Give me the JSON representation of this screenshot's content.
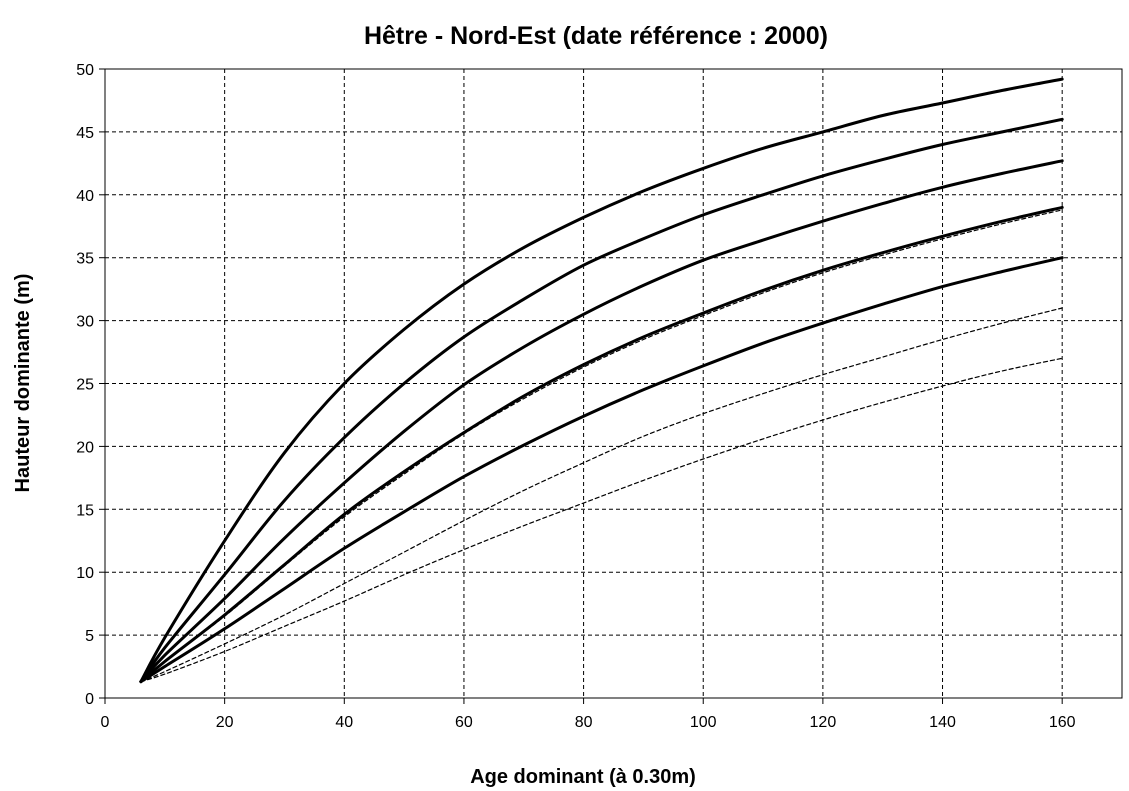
{
  "chart_data": {
    "type": "line",
    "title": "Hêtre - Nord-Est  (date référence : 2000)",
    "xlabel": "Age dominant (à 0.30m)",
    "ylabel": "Hauteur  dominante (m)",
    "xlim": [
      0,
      170
    ],
    "ylim": [
      0,
      50
    ],
    "xticks": [
      0,
      20,
      40,
      60,
      80,
      100,
      120,
      140,
      160
    ],
    "yticks": [
      0,
      5,
      10,
      15,
      20,
      25,
      30,
      35,
      40,
      45,
      50
    ],
    "grid": true,
    "legend": "none",
    "series": [
      {
        "style": "solid",
        "color": "#000000",
        "x": [
          6,
          10,
          20,
          30,
          40,
          50,
          60,
          70,
          80,
          90,
          100,
          110,
          120,
          130,
          140,
          150,
          160
        ],
        "y": [
          1.3,
          4.8,
          12.5,
          19.5,
          25.0,
          29.3,
          32.9,
          35.8,
          38.2,
          40.3,
          42.1,
          43.7,
          45.0,
          46.3,
          47.3,
          48.3,
          49.2
        ]
      },
      {
        "style": "solid",
        "color": "#000000",
        "x": [
          6,
          10,
          20,
          30,
          40,
          50,
          60,
          70,
          80,
          90,
          100,
          110,
          120,
          130,
          140,
          150,
          160
        ],
        "y": [
          1.3,
          4.0,
          9.8,
          15.7,
          20.7,
          25.0,
          28.7,
          31.7,
          34.4,
          36.5,
          38.4,
          40.0,
          41.5,
          42.8,
          44.0,
          45.0,
          46.0
        ]
      },
      {
        "style": "solid",
        "color": "#000000",
        "x": [
          6,
          10,
          20,
          30,
          40,
          50,
          60,
          70,
          80,
          90,
          100,
          110,
          120,
          130,
          140,
          150,
          160
        ],
        "y": [
          1.3,
          3.4,
          7.9,
          12.7,
          17.1,
          21.2,
          24.9,
          27.9,
          30.5,
          32.8,
          34.8,
          36.4,
          37.9,
          39.3,
          40.6,
          41.7,
          42.7
        ]
      },
      {
        "style": "solid",
        "color": "#000000",
        "x": [
          6,
          10,
          20,
          30,
          40,
          50,
          60,
          70,
          80,
          90,
          100,
          110,
          120,
          130,
          140,
          150,
          160
        ],
        "y": [
          1.3,
          2.9,
          6.6,
          10.6,
          14.6,
          18.0,
          21.1,
          24.0,
          26.5,
          28.7,
          30.6,
          32.4,
          34.0,
          35.4,
          36.7,
          37.9,
          39.0
        ]
      },
      {
        "style": "solid",
        "color": "#000000",
        "x": [
          6,
          10,
          20,
          30,
          40,
          50,
          60,
          70,
          80,
          90,
          100,
          110,
          120,
          130,
          140,
          150,
          160
        ],
        "y": [
          1.3,
          2.5,
          5.5,
          8.7,
          11.9,
          14.8,
          17.6,
          20.1,
          22.4,
          24.5,
          26.4,
          28.2,
          29.8,
          31.3,
          32.7,
          33.9,
          35.0
        ]
      },
      {
        "style": "dashed",
        "color": "#000000",
        "x": [
          6,
          10,
          20,
          30,
          40,
          50,
          60,
          70,
          80,
          90,
          100,
          110,
          120,
          130,
          140,
          150,
          160
        ],
        "y": [
          1.3,
          2.9,
          6.5,
          10.5,
          14.4,
          17.8,
          21.0,
          23.8,
          26.3,
          28.5,
          30.4,
          32.2,
          33.8,
          35.2,
          36.5,
          37.7,
          38.8
        ]
      },
      {
        "style": "dashed",
        "color": "#000000",
        "x": [
          6,
          10,
          20,
          30,
          40,
          50,
          60,
          70,
          80,
          90,
          100,
          110,
          120,
          130,
          140,
          150,
          160
        ],
        "y": [
          1.3,
          2.1,
          4.3,
          6.6,
          9.1,
          11.6,
          14.1,
          16.5,
          18.7,
          20.8,
          22.6,
          24.2,
          25.7,
          27.1,
          28.5,
          29.8,
          31.0
        ]
      },
      {
        "style": "dashed",
        "color": "#000000",
        "x": [
          6,
          10,
          20,
          30,
          40,
          50,
          60,
          70,
          80,
          90,
          100,
          110,
          120,
          130,
          140,
          150,
          160
        ],
        "y": [
          1.3,
          1.9,
          3.7,
          5.7,
          7.7,
          9.8,
          11.8,
          13.7,
          15.5,
          17.3,
          19.0,
          20.6,
          22.1,
          23.5,
          24.8,
          26.0,
          27.0
        ]
      }
    ]
  }
}
